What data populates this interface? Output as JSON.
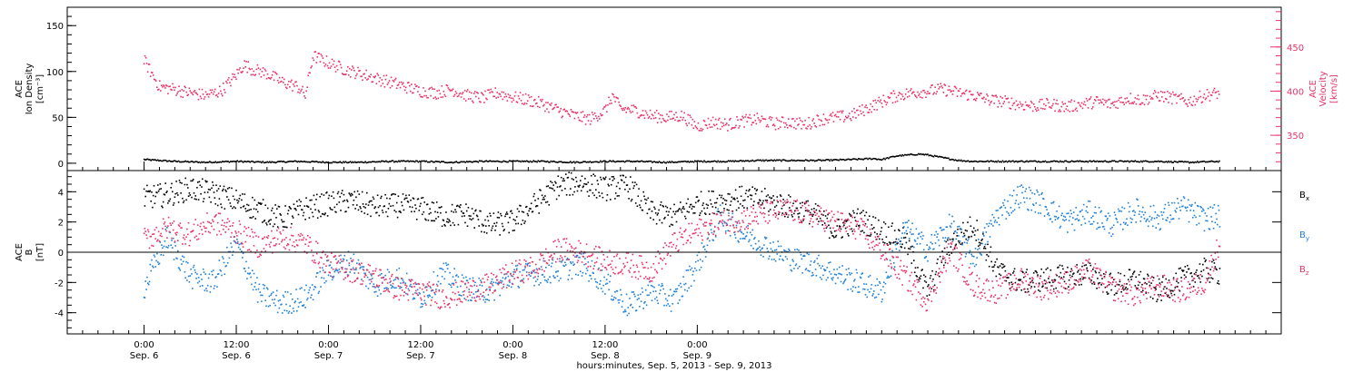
{
  "chart_data": [
    {
      "type": "scatter",
      "panel": "top",
      "ylabel_lines": [
        "ACE",
        "Ion Density"
      ],
      "ylabel_unit": "[cm⁻³]",
      "y2label_lines": [
        "ACE",
        "Velocity"
      ],
      "y2label_unit": "[km/s]",
      "ylim": [
        -8,
        170
      ],
      "yticks": [
        0,
        50,
        100,
        150
      ],
      "y2lim": [
        310,
        495
      ],
      "y2ticks": [
        350,
        400,
        450
      ],
      "grid": false,
      "series": [
        {
          "key": "density",
          "axis": "left",
          "color": "#000000",
          "x_hours": [
            0,
            4,
            8,
            12,
            16,
            20,
            24,
            28,
            32,
            36,
            40,
            44,
            48,
            52,
            56,
            60,
            64,
            68,
            72,
            76,
            80,
            84,
            88,
            92,
            95,
            96,
            98,
            101,
            102,
            104,
            106,
            108,
            112,
            116,
            120,
            124,
            128,
            132,
            136,
            140
          ],
          "values": [
            4,
            2,
            1,
            2,
            1,
            2,
            1,
            1,
            2,
            2,
            1,
            2,
            2,
            2,
            1,
            2,
            2,
            1,
            2,
            2,
            3,
            3,
            3,
            4,
            5,
            4,
            8,
            10,
            9,
            6,
            3,
            2,
            2,
            2,
            2,
            2,
            2,
            2,
            1,
            2
          ]
        },
        {
          "key": "velocity",
          "axis": "right",
          "color": "#e8336a",
          "x_hours": [
            0,
            2,
            4,
            6,
            8,
            10,
            12,
            13,
            14,
            16,
            18,
            20,
            21,
            22,
            24,
            26,
            28,
            30,
            32,
            34,
            36,
            38,
            40,
            42,
            44,
            46,
            48,
            50,
            52,
            54,
            56,
            58,
            60,
            61,
            62,
            64,
            66,
            68,
            70,
            72,
            74,
            76,
            78,
            80,
            82,
            84,
            86,
            88,
            90,
            92,
            94,
            96,
            98,
            100,
            102,
            104,
            106,
            108,
            110,
            112,
            114,
            116,
            118,
            120,
            122,
            124,
            126,
            128,
            130,
            132,
            134,
            136,
            138,
            140
          ],
          "values": [
            435,
            405,
            402,
            398,
            395,
            400,
            418,
            430,
            425,
            420,
            410,
            405,
            395,
            440,
            432,
            425,
            420,
            415,
            410,
            405,
            400,
            398,
            402,
            395,
            392,
            398,
            393,
            390,
            385,
            378,
            372,
            368,
            378,
            395,
            380,
            378,
            372,
            370,
            372,
            360,
            365,
            362,
            366,
            368,
            363,
            365,
            362,
            368,
            370,
            372,
            380,
            388,
            395,
            398,
            400,
            402,
            398,
            395,
            390,
            388,
            385,
            383,
            385,
            382,
            385,
            388,
            385,
            392,
            390,
            395,
            392,
            388,
            395,
            398
          ]
        }
      ]
    },
    {
      "type": "scatter",
      "panel": "bottom",
      "ylabel_lines": [
        "ACE",
        "B"
      ],
      "ylabel_unit": "[nT]",
      "ylim": [
        -5.4,
        5.4
      ],
      "yticks": [
        -4,
        -2,
        0,
        2,
        4
      ],
      "zero_line": true,
      "grid": false,
      "legend": "right",
      "series": [
        {
          "key": "bx",
          "label_main": "B",
          "label_sub": "x",
          "color": "#000000",
          "x_hours": [
            0,
            3,
            6,
            9,
            12,
            15,
            18,
            21,
            24,
            27,
            30,
            33,
            36,
            39,
            42,
            45,
            48,
            51,
            54,
            57,
            60,
            63,
            66,
            69,
            72,
            75,
            78,
            81,
            84,
            87,
            90,
            93,
            96,
            99,
            102,
            105,
            108,
            111,
            114,
            117,
            120,
            123,
            126,
            129,
            132,
            135,
            138,
            140
          ],
          "values": [
            3.6,
            3.8,
            4.2,
            3.9,
            3.4,
            2.8,
            2.2,
            2.9,
            3.2,
            3.4,
            3.0,
            3.1,
            2.9,
            2.4,
            2.5,
            1.8,
            2.0,
            3.2,
            4.4,
            4.6,
            4.2,
            4.4,
            2.6,
            2.4,
            3.2,
            3.4,
            3.6,
            3.4,
            3.0,
            2.6,
            1.4,
            2.2,
            1.4,
            0.8,
            -2.6,
            0.6,
            1.8,
            -1.2,
            -2.0,
            -1.8,
            -1.6,
            -1.4,
            -2.2,
            -1.8,
            -2.6,
            -1.8,
            -1.2,
            -1.4
          ]
        },
        {
          "key": "by",
          "label_main": "B",
          "label_sub": "y",
          "color": "#1f80d8",
          "x_hours": [
            0,
            3,
            6,
            9,
            12,
            15,
            18,
            21,
            24,
            27,
            30,
            33,
            36,
            39,
            42,
            45,
            48,
            51,
            54,
            57,
            60,
            63,
            66,
            69,
            72,
            75,
            78,
            81,
            84,
            87,
            90,
            93,
            96,
            99,
            102,
            105,
            108,
            111,
            114,
            117,
            120,
            123,
            126,
            129,
            132,
            135,
            138,
            140
          ],
          "values": [
            -2.4,
            1.0,
            -1.6,
            -2.0,
            0.6,
            -2.8,
            -3.4,
            -3.0,
            -1.2,
            -0.6,
            -2.2,
            -1.6,
            -3.0,
            -1.4,
            -2.4,
            -2.6,
            -1.6,
            -1.4,
            -1.2,
            -0.8,
            -2.0,
            -3.6,
            -2.6,
            -3.2,
            -0.8,
            2.4,
            1.2,
            0.4,
            -0.4,
            -0.8,
            -1.4,
            -2.0,
            -2.6,
            1.6,
            0.2,
            1.8,
            -0.4,
            2.4,
            3.8,
            3.2,
            2.0,
            2.6,
            1.8,
            2.8,
            2.2,
            3.0,
            2.2,
            2.4
          ]
        },
        {
          "key": "bz",
          "label_main": "B",
          "label_sub": "z",
          "color": "#e8336a",
          "x_hours": [
            0,
            3,
            6,
            9,
            12,
            15,
            18,
            21,
            24,
            27,
            30,
            33,
            36,
            39,
            42,
            45,
            48,
            51,
            54,
            57,
            60,
            63,
            66,
            69,
            72,
            75,
            78,
            81,
            84,
            87,
            90,
            93,
            96,
            99,
            102,
            105,
            108,
            111,
            114,
            117,
            120,
            123,
            126,
            129,
            132,
            135,
            138,
            140
          ],
          "values": [
            0.8,
            1.6,
            1.2,
            2.0,
            1.4,
            0.4,
            1.0,
            0.6,
            -0.8,
            -1.2,
            -1.6,
            -2.4,
            -2.6,
            -3.0,
            -2.6,
            -2.2,
            -1.4,
            -1.0,
            0.2,
            0.0,
            -0.6,
            -0.8,
            -1.2,
            0.6,
            1.4,
            2.0,
            2.2,
            2.6,
            2.8,
            2.4,
            2.0,
            1.6,
            0.2,
            -1.6,
            -3.2,
            0.2,
            -2.2,
            -2.6,
            -1.8,
            -2.4,
            -2.0,
            -1.2,
            -2.4,
            -2.8,
            -2.2,
            -2.6,
            -2.0,
            0.6
          ]
        }
      ]
    }
  ],
  "x_axis": {
    "xlim_hours": [
      -10,
      148
    ],
    "ticks": [
      {
        "hour": 0,
        "time": "0:00",
        "date": "Sep. 6"
      },
      {
        "hour": 12,
        "time": "12:00",
        "date": "Sep. 6"
      },
      {
        "hour": 24,
        "time": "0:00",
        "date": "Sep. 7"
      },
      {
        "hour": 36,
        "time": "12:00",
        "date": "Sep. 7"
      },
      {
        "hour": 48,
        "time": "0:00",
        "date": "Sep. 8"
      },
      {
        "hour": 60,
        "time": "12:00",
        "date": "Sep. 8"
      },
      {
        "hour": 72,
        "time": "0:00",
        "date": "Sep. 9"
      }
    ],
    "xlabel": "hours:minutes, Sep.  5, 2013 - Sep.  9, 2013"
  }
}
